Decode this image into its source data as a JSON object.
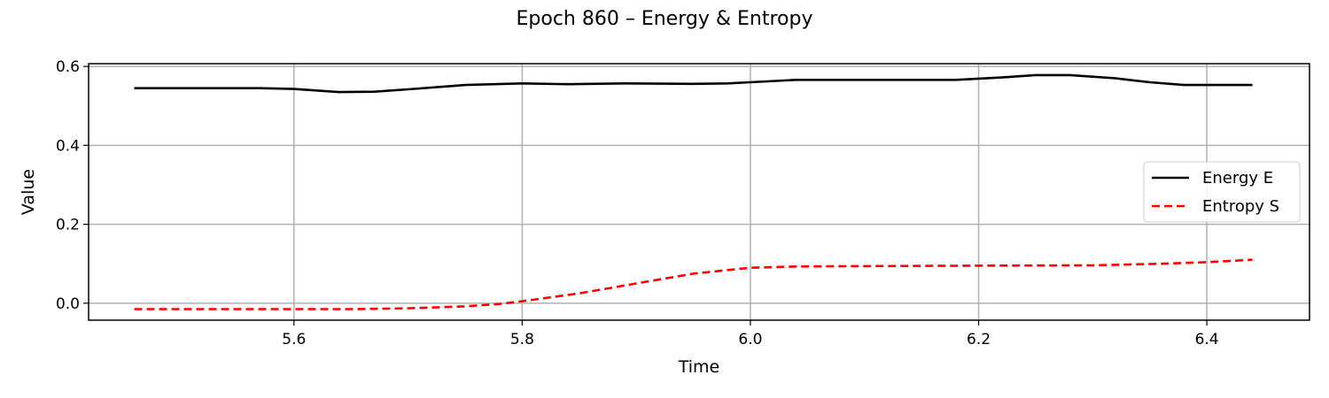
{
  "chart_data": {
    "type": "line",
    "title": "Epoch 860 – Energy & Entropy",
    "xlabel": "Time",
    "ylabel": "Value",
    "xlim": [
      5.42,
      6.49
    ],
    "ylim": [
      -0.043,
      0.607
    ],
    "xticks": [
      "5.6",
      "5.8",
      "6.0",
      "6.2",
      "6.4"
    ],
    "yticks": [
      "0.0",
      "0.2",
      "0.4",
      "0.6"
    ],
    "grid": true,
    "legend": "center-right",
    "series": [
      {
        "name": "Energy E",
        "color": "#000000",
        "style": "solid",
        "points": [
          [
            5.46,
            0.545
          ],
          [
            5.5,
            0.545
          ],
          [
            5.54,
            0.545
          ],
          [
            5.57,
            0.545
          ],
          [
            5.6,
            0.543
          ],
          [
            5.64,
            0.535
          ],
          [
            5.67,
            0.536
          ],
          [
            5.7,
            0.542
          ],
          [
            5.75,
            0.553
          ],
          [
            5.8,
            0.557
          ],
          [
            5.84,
            0.555
          ],
          [
            5.89,
            0.557
          ],
          [
            5.95,
            0.556
          ],
          [
            5.98,
            0.557
          ],
          [
            6.0,
            0.56
          ],
          [
            6.04,
            0.566
          ],
          [
            6.1,
            0.566
          ],
          [
            6.15,
            0.566
          ],
          [
            6.18,
            0.566
          ],
          [
            6.22,
            0.572
          ],
          [
            6.25,
            0.578
          ],
          [
            6.28,
            0.578
          ],
          [
            6.32,
            0.57
          ],
          [
            6.35,
            0.56
          ],
          [
            6.38,
            0.553
          ],
          [
            6.44,
            0.553
          ]
        ]
      },
      {
        "name": "Entropy S",
        "color": "#ff0000",
        "style": "dashed",
        "points": [
          [
            5.46,
            -0.015
          ],
          [
            5.55,
            -0.015
          ],
          [
            5.65,
            -0.015
          ],
          [
            5.7,
            -0.013
          ],
          [
            5.75,
            -0.008
          ],
          [
            5.78,
            -0.002
          ],
          [
            5.8,
            0.005
          ],
          [
            5.85,
            0.025
          ],
          [
            5.9,
            0.05
          ],
          [
            5.95,
            0.075
          ],
          [
            6.0,
            0.09
          ],
          [
            6.04,
            0.093
          ],
          [
            6.1,
            0.094
          ],
          [
            6.2,
            0.095
          ],
          [
            6.3,
            0.096
          ],
          [
            6.36,
            0.1
          ],
          [
            6.4,
            0.104
          ],
          [
            6.44,
            0.11
          ]
        ]
      }
    ]
  }
}
